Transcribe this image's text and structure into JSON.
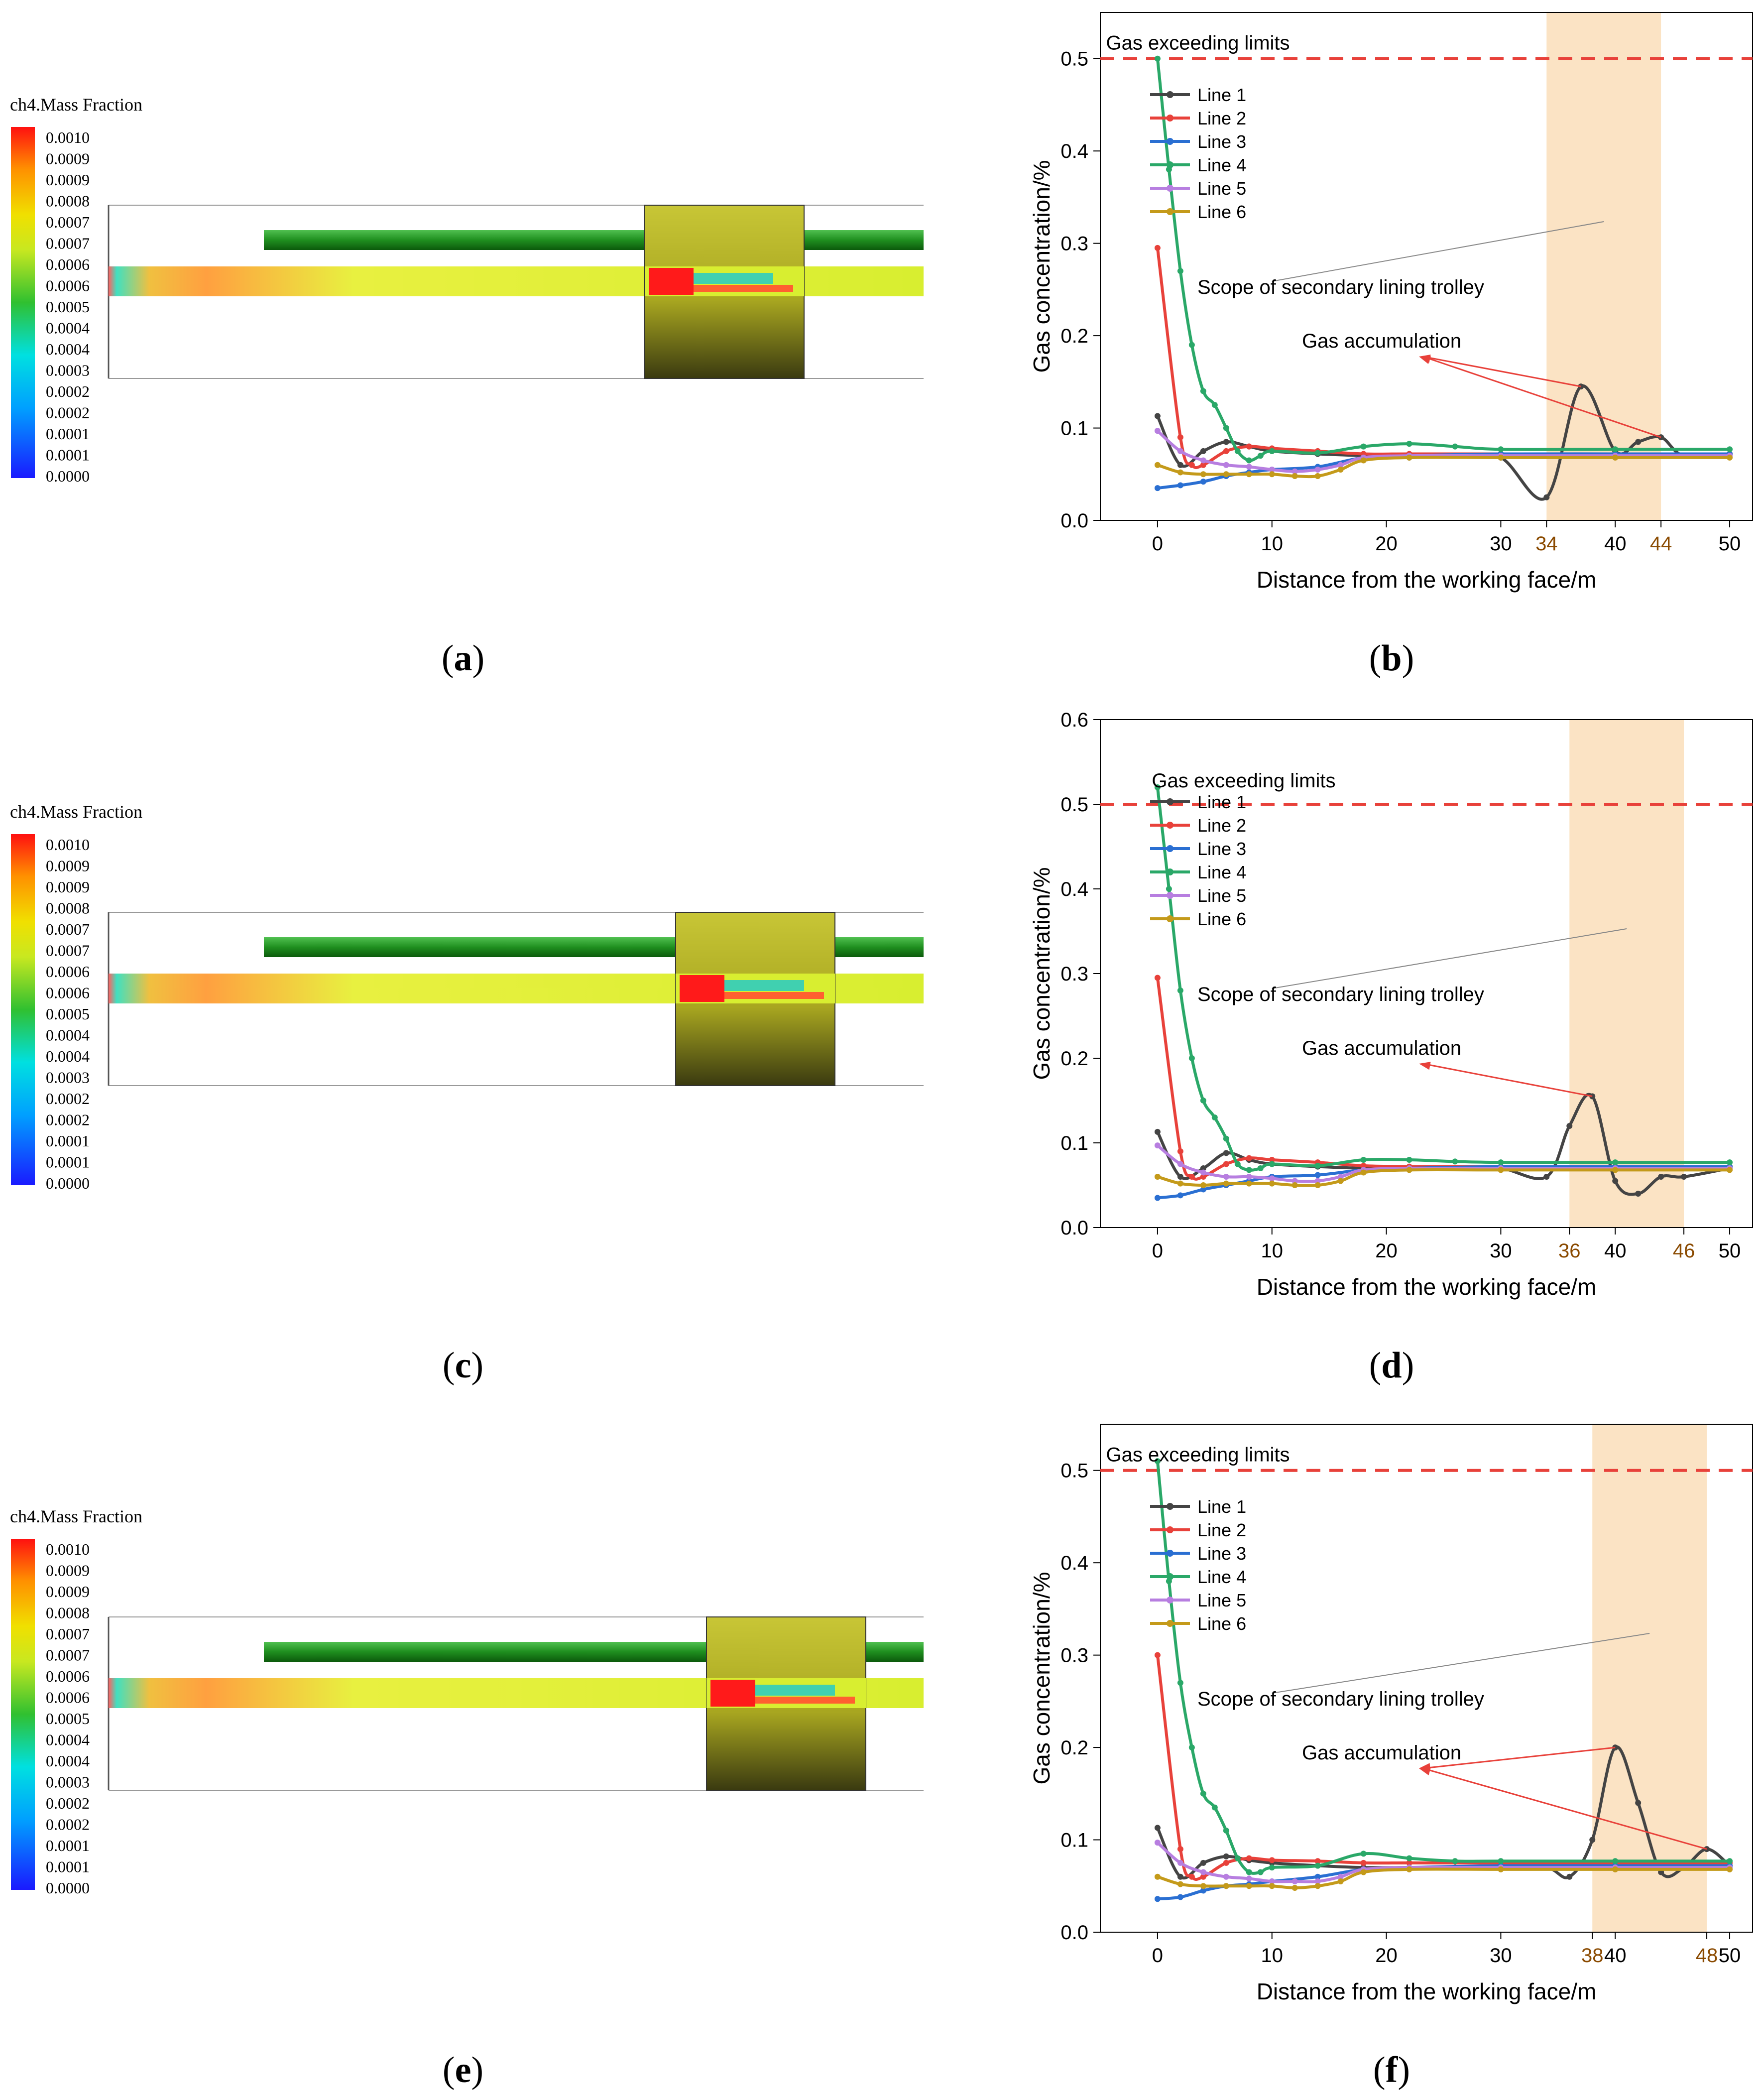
{
  "colors": {
    "line1": "#444444",
    "line2": "#e8413a",
    "line3": "#2a6fd2",
    "line4": "#2aa868",
    "line5": "#b77ee0",
    "line6": "#c49a1a",
    "limit": "#e8413a",
    "shade": "#fbe3c4",
    "pipe": "#1f8f1f",
    "trolley": "#a8a620",
    "tick_highlight": "#8a4a00"
  },
  "legend_labels": [
    "Line 1",
    "Line 2",
    "Line 3",
    "Line 4",
    "Line 5",
    "Line 6"
  ],
  "colorbar": {
    "title": "ch4.Mass Fraction",
    "ticks": [
      "0.0010",
      "0.0009",
      "0.0009",
      "0.0008",
      "0.0007",
      "0.0007",
      "0.0006",
      "0.0006",
      "0.0005",
      "0.0004",
      "0.0004",
      "0.0003",
      "0.0002",
      "0.0002",
      "0.0001",
      "0.0001",
      "0.0000"
    ]
  },
  "panels": {
    "a": {
      "label": "a",
      "trolley_start_m": 34
    },
    "b": {
      "label": "b"
    },
    "c": {
      "label": "c",
      "trolley_start_m": 36
    },
    "d": {
      "label": "d"
    },
    "e": {
      "label": "e",
      "trolley_start_m": 38
    },
    "f": {
      "label": "f"
    }
  },
  "chart_data": [
    {
      "type": "line",
      "panel": "b",
      "xlabel": "Distance from the working face/m",
      "ylabel": "Gas concentration/%",
      "xlim": [
        -5,
        52
      ],
      "ylim": [
        0,
        0.55
      ],
      "xticks": [
        0,
        10,
        20,
        30,
        40,
        50
      ],
      "highlight_ticks": [
        34,
        44
      ],
      "yticks": [
        0.0,
        0.1,
        0.2,
        0.3,
        0.4,
        0.5
      ],
      "ytick_labels": [
        "0.0",
        "0.1",
        "0.2",
        "0.3",
        "0.4",
        "0.5"
      ],
      "limit": 0.5,
      "shade_range": [
        34,
        44
      ],
      "annotations": {
        "limit_text": "Gas exceeding limits",
        "trolley_text": "Scope of secondary lining trolley",
        "accum_text": "Gas accumulation"
      },
      "series": [
        {
          "name": "Line 1",
          "x": [
            0,
            2,
            4,
            6,
            8,
            10,
            14,
            18,
            22,
            26,
            30,
            34,
            37,
            40,
            42,
            44,
            46,
            50
          ],
          "y": [
            0.113,
            0.06,
            0.075,
            0.085,
            0.08,
            0.075,
            0.072,
            0.07,
            0.068,
            0.07,
            0.068,
            0.025,
            0.145,
            0.075,
            0.085,
            0.09,
            0.07,
            0.072
          ]
        },
        {
          "name": "Line 2",
          "x": [
            0,
            2,
            3,
            4,
            6,
            8,
            10,
            14,
            18,
            22,
            30,
            40,
            50
          ],
          "y": [
            0.295,
            0.09,
            0.06,
            0.06,
            0.075,
            0.08,
            0.078,
            0.075,
            0.072,
            0.072,
            0.072,
            0.072,
            0.072
          ]
        },
        {
          "name": "Line 3",
          "x": [
            0,
            2,
            4,
            6,
            8,
            10,
            14,
            18,
            22,
            30,
            40,
            50
          ],
          "y": [
            0.035,
            0.038,
            0.042,
            0.048,
            0.052,
            0.055,
            0.058,
            0.068,
            0.07,
            0.072,
            0.072,
            0.072
          ]
        },
        {
          "name": "Line 4",
          "x": [
            0,
            1,
            2,
            3,
            4,
            5,
            6,
            7,
            8,
            9,
            10,
            14,
            18,
            22,
            26,
            30,
            40,
            50
          ],
          "y": [
            0.5,
            0.38,
            0.27,
            0.19,
            0.14,
            0.125,
            0.1,
            0.075,
            0.065,
            0.07,
            0.075,
            0.073,
            0.08,
            0.083,
            0.08,
            0.077,
            0.077,
            0.077
          ]
        },
        {
          "name": "Line 5",
          "x": [
            0,
            2,
            4,
            6,
            8,
            10,
            12,
            14,
            16,
            18,
            22,
            30,
            40,
            50
          ],
          "y": [
            0.097,
            0.075,
            0.065,
            0.06,
            0.058,
            0.055,
            0.053,
            0.055,
            0.06,
            0.068,
            0.07,
            0.07,
            0.07,
            0.07
          ]
        },
        {
          "name": "Line 6",
          "x": [
            0,
            2,
            4,
            6,
            8,
            10,
            12,
            14,
            16,
            18,
            22,
            30,
            40,
            50
          ],
          "y": [
            0.06,
            0.052,
            0.05,
            0.05,
            0.05,
            0.05,
            0.048,
            0.048,
            0.055,
            0.065,
            0.068,
            0.068,
            0.068,
            0.068
          ]
        }
      ]
    },
    {
      "type": "line",
      "panel": "d",
      "xlabel": "Distance from the working face/m",
      "ylabel": "Gas concentration/%",
      "xlim": [
        -5,
        52
      ],
      "ylim": [
        0,
        0.6
      ],
      "xticks": [
        0,
        10,
        20,
        30,
        40,
        50
      ],
      "highlight_ticks": [
        36,
        46
      ],
      "yticks": [
        0.0,
        0.1,
        0.2,
        0.3,
        0.4,
        0.5,
        0.6
      ],
      "ytick_labels": [
        "0.0",
        "0.1",
        "0.2",
        "0.3",
        "0.4",
        "0.5",
        "0.6"
      ],
      "limit": 0.5,
      "shade_range": [
        36,
        46
      ],
      "annotations": {
        "limit_text": "Gas exceeding limits",
        "trolley_text": "Scope of secondary lining trolley",
        "accum_text": "Gas accumulation"
      },
      "series": [
        {
          "name": "Line 1",
          "x": [
            0,
            2,
            4,
            6,
            8,
            10,
            14,
            18,
            22,
            26,
            30,
            34,
            36,
            38,
            40,
            42,
            44,
            46,
            50
          ],
          "y": [
            0.113,
            0.06,
            0.07,
            0.088,
            0.08,
            0.075,
            0.072,
            0.07,
            0.07,
            0.07,
            0.07,
            0.06,
            0.12,
            0.155,
            0.055,
            0.04,
            0.06,
            0.06,
            0.07
          ]
        },
        {
          "name": "Line 2",
          "x": [
            0,
            2,
            3,
            4,
            6,
            8,
            10,
            14,
            18,
            22,
            30,
            40,
            50
          ],
          "y": [
            0.295,
            0.09,
            0.06,
            0.06,
            0.075,
            0.082,
            0.08,
            0.077,
            0.073,
            0.072,
            0.072,
            0.072,
            0.072
          ]
        },
        {
          "name": "Line 3",
          "x": [
            0,
            2,
            4,
            6,
            8,
            10,
            14,
            18,
            22,
            30,
            40,
            50
          ],
          "y": [
            0.035,
            0.038,
            0.045,
            0.05,
            0.055,
            0.06,
            0.062,
            0.068,
            0.07,
            0.072,
            0.072,
            0.072
          ]
        },
        {
          "name": "Line 4",
          "x": [
            0,
            1,
            2,
            3,
            4,
            5,
            6,
            7,
            8,
            9,
            10,
            14,
            18,
            22,
            26,
            30,
            40,
            50
          ],
          "y": [
            0.52,
            0.4,
            0.28,
            0.2,
            0.15,
            0.13,
            0.105,
            0.075,
            0.068,
            0.07,
            0.075,
            0.073,
            0.08,
            0.08,
            0.078,
            0.077,
            0.077,
            0.077
          ]
        },
        {
          "name": "Line 5",
          "x": [
            0,
            2,
            4,
            6,
            8,
            10,
            12,
            14,
            16,
            18,
            22,
            30,
            40,
            50
          ],
          "y": [
            0.097,
            0.075,
            0.065,
            0.06,
            0.06,
            0.058,
            0.055,
            0.055,
            0.06,
            0.068,
            0.07,
            0.07,
            0.07,
            0.07
          ]
        },
        {
          "name": "Line 6",
          "x": [
            0,
            2,
            4,
            6,
            8,
            10,
            12,
            14,
            16,
            18,
            22,
            30,
            40,
            50
          ],
          "y": [
            0.06,
            0.052,
            0.05,
            0.052,
            0.052,
            0.052,
            0.05,
            0.05,
            0.055,
            0.065,
            0.068,
            0.068,
            0.068,
            0.068
          ]
        }
      ]
    },
    {
      "type": "line",
      "panel": "f",
      "xlabel": "Distance from the working face/m",
      "ylabel": "Gas concentration/%",
      "xlim": [
        -5,
        52
      ],
      "ylim": [
        0,
        0.55
      ],
      "xticks": [
        0,
        10,
        20,
        30,
        40,
        50
      ],
      "highlight_ticks": [
        38,
        48
      ],
      "yticks": [
        0.0,
        0.1,
        0.2,
        0.3,
        0.4,
        0.5
      ],
      "ytick_labels": [
        "0.0",
        "0.1",
        "0.2",
        "0.3",
        "0.4",
        "0.5"
      ],
      "limit": 0.5,
      "shade_range": [
        38,
        48
      ],
      "annotations": {
        "limit_text": "Gas exceeding limits",
        "trolley_text": "Scope of secondary lining trolley",
        "accum_text": "Gas accumulation"
      },
      "series": [
        {
          "name": "Line 1",
          "x": [
            0,
            2,
            4,
            6,
            8,
            10,
            14,
            18,
            22,
            26,
            30,
            34,
            36,
            38,
            40,
            42,
            44,
            46,
            48,
            50
          ],
          "y": [
            0.113,
            0.06,
            0.075,
            0.082,
            0.078,
            0.075,
            0.072,
            0.07,
            0.07,
            0.07,
            0.07,
            0.07,
            0.06,
            0.1,
            0.2,
            0.14,
            0.065,
            0.07,
            0.09,
            0.072
          ]
        },
        {
          "name": "Line 2",
          "x": [
            0,
            2,
            3,
            4,
            6,
            8,
            10,
            14,
            18,
            22,
            30,
            40,
            50
          ],
          "y": [
            0.3,
            0.09,
            0.06,
            0.06,
            0.075,
            0.08,
            0.078,
            0.077,
            0.075,
            0.075,
            0.075,
            0.075,
            0.075
          ]
        },
        {
          "name": "Line 3",
          "x": [
            0,
            2,
            4,
            6,
            8,
            10,
            14,
            18,
            22,
            30,
            40,
            50
          ],
          "y": [
            0.036,
            0.038,
            0.045,
            0.05,
            0.052,
            0.055,
            0.06,
            0.068,
            0.07,
            0.072,
            0.072,
            0.072
          ]
        },
        {
          "name": "Line 4",
          "x": [
            0,
            1,
            2,
            3,
            4,
            5,
            6,
            7,
            8,
            9,
            10,
            14,
            18,
            22,
            26,
            30,
            40,
            50
          ],
          "y": [
            0.51,
            0.38,
            0.27,
            0.2,
            0.15,
            0.135,
            0.11,
            0.08,
            0.065,
            0.065,
            0.07,
            0.072,
            0.085,
            0.08,
            0.077,
            0.077,
            0.077,
            0.077
          ]
        },
        {
          "name": "Line 5",
          "x": [
            0,
            2,
            4,
            6,
            8,
            10,
            12,
            14,
            16,
            18,
            22,
            30,
            40,
            50
          ],
          "y": [
            0.097,
            0.075,
            0.065,
            0.06,
            0.058,
            0.055,
            0.055,
            0.055,
            0.06,
            0.068,
            0.07,
            0.07,
            0.07,
            0.07
          ]
        },
        {
          "name": "Line 6",
          "x": [
            0,
            2,
            4,
            6,
            8,
            10,
            12,
            14,
            16,
            18,
            22,
            30,
            40,
            50
          ],
          "y": [
            0.06,
            0.052,
            0.05,
            0.05,
            0.05,
            0.05,
            0.048,
            0.05,
            0.055,
            0.065,
            0.068,
            0.068,
            0.068,
            0.068
          ]
        }
      ]
    }
  ]
}
